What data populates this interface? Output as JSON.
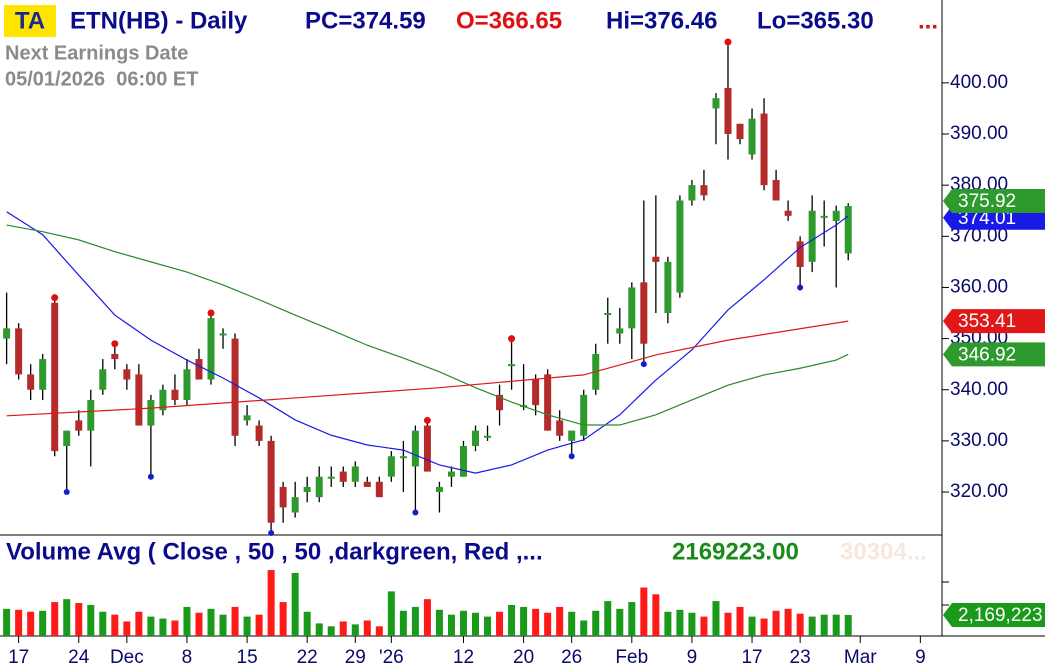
{
  "header": {
    "badge": "TA",
    "title": "ETN(HB) - Daily",
    "pc": "PC=374.59",
    "open": "O=366.65",
    "high": "Hi=376.46",
    "low": "Lo=365.30",
    "more": "...",
    "earnings_title": "Next Earnings Date",
    "earnings_date": "05/01/2026  06:00 ET"
  },
  "chart_data": {
    "type": "candlestick",
    "open": [
      350,
      352,
      343,
      340,
      357,
      329,
      334,
      332,
      340,
      347,
      344,
      343,
      333,
      336,
      340,
      338,
      346,
      342,
      351,
      350,
      334,
      333,
      330,
      321,
      316,
      320,
      319,
      323,
      324,
      322,
      322,
      322,
      323,
      327,
      325,
      333,
      320,
      323,
      323,
      329,
      331,
      339,
      345,
      337,
      342,
      343,
      334,
      330,
      331,
      340,
      355,
      351,
      352,
      361,
      366,
      355,
      359,
      377,
      380,
      395,
      399,
      392,
      386,
      394,
      381,
      375,
      369,
      365,
      374,
      373,
      366.65
    ],
    "high": [
      359,
      353,
      345,
      347,
      358,
      332,
      336,
      340,
      346,
      349,
      345,
      345,
      339,
      341,
      343,
      346,
      348,
      355,
      352,
      351,
      337,
      334,
      331,
      322,
      322,
      323,
      325,
      325,
      325,
      326,
      323,
      323,
      328,
      330,
      333,
      334,
      322,
      325,
      330,
      333,
      333,
      341,
      350,
      345,
      343,
      344,
      336,
      332,
      340,
      349,
      358,
      356,
      361,
      377,
      378,
      366,
      378,
      381,
      383,
      398,
      408,
      392,
      395,
      397,
      383,
      377,
      370,
      378,
      377,
      376,
      376.46
    ],
    "low": [
      345,
      342,
      338,
      338,
      327,
      320,
      331,
      325,
      339,
      344,
      340,
      333,
      323,
      335,
      337,
      337,
      342,
      341,
      348,
      329,
      333,
      329,
      312,
      314,
      315,
      318,
      318,
      321,
      321,
      321,
      321,
      319,
      322,
      320,
      316,
      324,
      316,
      321,
      323,
      328,
      330,
      333,
      340,
      336,
      335,
      332,
      330,
      327,
      330,
      339,
      349,
      349,
      346,
      345,
      355,
      353,
      358,
      376,
      377,
      388,
      385,
      388,
      385,
      379,
      377,
      373,
      360,
      363,
      368,
      360,
      365.3
    ],
    "close": [
      352,
      343,
      340,
      346,
      328,
      332,
      332,
      338,
      344,
      346,
      342,
      333,
      338,
      340,
      338,
      344,
      342,
      354,
      351,
      331,
      335,
      330,
      314,
      317,
      319,
      321,
      323,
      323,
      322,
      325,
      321,
      319,
      327,
      327,
      332,
      324,
      321,
      324,
      329,
      332,
      331,
      336,
      345,
      337,
      337,
      332,
      331,
      332,
      339,
      347,
      355,
      352,
      360,
      349,
      365,
      365,
      377,
      380,
      378,
      397,
      390,
      389,
      393,
      380,
      377,
      374,
      364,
      375,
      374,
      375,
      375.92
    ],
    "up_color": "#2e9a2e",
    "down_color": "#b52a2a",
    "high_markers": [
      4,
      9,
      17,
      35,
      42,
      60
    ],
    "high_marker_color": "#e01010",
    "low_markers": [
      5,
      12,
      22,
      34,
      47,
      53,
      66
    ],
    "low_marker_color": "#1020d0",
    "series": [
      {
        "color": "#1a1ae6",
        "x": [
          0,
          3,
          6,
          9,
          12,
          15,
          18,
          21,
          24,
          27,
          30,
          33,
          36,
          39,
          42,
          45,
          48,
          51,
          54,
          57,
          60,
          63,
          66,
          69,
          70
        ],
        "values": [
          374.8,
          370.3,
          362.4,
          354.6,
          349.7,
          345.8,
          342.3,
          338.4,
          334.1,
          331.1,
          329.2,
          328.2,
          325.3,
          323.7,
          325.3,
          328.2,
          330.2,
          335.1,
          341.9,
          347.8,
          355.6,
          361.5,
          367.8,
          372.2,
          374.01
        ]
      },
      {
        "color": "#2a8a2a",
        "x": [
          0,
          3,
          6,
          9,
          12,
          15,
          18,
          21,
          24,
          27,
          30,
          33,
          36,
          39,
          42,
          45,
          48,
          51,
          54,
          57,
          60,
          63,
          66,
          69,
          70
        ],
        "values": [
          372.2,
          370.9,
          369.3,
          367.0,
          365.0,
          363.0,
          360.5,
          357.6,
          354.6,
          351.7,
          348.7,
          346.2,
          343.5,
          340.4,
          337.6,
          335.1,
          333.1,
          333.1,
          335.1,
          338.0,
          340.9,
          342.9,
          344.2,
          345.8,
          346.92
        ]
      },
      {
        "color": "#e01818",
        "x": [
          0,
          12,
          24,
          36,
          48,
          54,
          60,
          70
        ],
        "values": [
          334.9,
          336.4,
          338.4,
          340.4,
          342.9,
          346.8,
          349.7,
          353.41
        ]
      }
    ],
    "ylim": [
      311.6,
      416.2
    ],
    "yticks": [
      {
        "value": 320,
        "label": "320.00"
      },
      {
        "value": 330,
        "label": "330.00"
      },
      {
        "value": 340,
        "label": "340.00"
      },
      {
        "value": 350,
        "label": "350.00"
      },
      {
        "value": 360,
        "label": "360.00"
      },
      {
        "value": 370,
        "label": "370.00"
      },
      {
        "value": 380,
        "label": "380.00"
      },
      {
        "value": 390,
        "label": "390.00"
      },
      {
        "value": 400,
        "label": "400.00"
      }
    ],
    "xlim": [
      -0.55,
      77.8
    ],
    "xticks": [
      {
        "value": 1,
        "label": "17"
      },
      {
        "value": 6,
        "label": "24"
      },
      {
        "value": 10,
        "label": "Dec"
      },
      {
        "value": 15,
        "label": "8"
      },
      {
        "value": 20,
        "label": "15"
      },
      {
        "value": 25,
        "label": "22"
      },
      {
        "value": 29,
        "label": "29"
      },
      {
        "value": 32,
        "label": "'26"
      },
      {
        "value": 38,
        "label": "12"
      },
      {
        "value": 43,
        "label": "20"
      },
      {
        "value": 47,
        "label": "26"
      },
      {
        "value": 52,
        "label": "Feb"
      },
      {
        "value": 57,
        "label": "9"
      },
      {
        "value": 62,
        "label": "17"
      },
      {
        "value": 66,
        "label": "23"
      },
      {
        "value": 71,
        "label": "Mar"
      },
      {
        "value": 76,
        "label": "9"
      }
    ],
    "volume": {
      "title": "Volume Avg ( Close , 50 , 50 ,darkgreen, Red ,...",
      "value_text": "2169223.00",
      "faded_text": "30304...",
      "label": "2,169,223",
      "ylim": [
        0,
        9900000
      ],
      "up_color": "#1a9a1a",
      "down_color": "#ff1a1a",
      "values": [
        2800000,
        2700000,
        2500000,
        2600000,
        3500000,
        3800000,
        3400000,
        3200000,
        2500000,
        2200000,
        1500000,
        2500000,
        2000000,
        1800000,
        1600000,
        3000000,
        2400000,
        2800000,
        2200000,
        3000000,
        2000000,
        2200000,
        6800000,
        3500000,
        6500000,
        2500000,
        1300000,
        1000000,
        1500000,
        1200000,
        1600000,
        1000000,
        4600000,
        2600000,
        3000000,
        3800000,
        2700000,
        2200000,
        2600000,
        2400000,
        2000000,
        2500000,
        3200000,
        3000000,
        2800000,
        2400000,
        3000000,
        2500000,
        1600000,
        2600000,
        3600000,
        2800000,
        3500000,
        5000000,
        4300000,
        2500000,
        2700000,
        2400000,
        2000000,
        3600000,
        2400000,
        3000000,
        2000000,
        1800000,
        2600000,
        2800000,
        2300000,
        2000000,
        2200000,
        2200000,
        2169223
      ]
    }
  }
}
